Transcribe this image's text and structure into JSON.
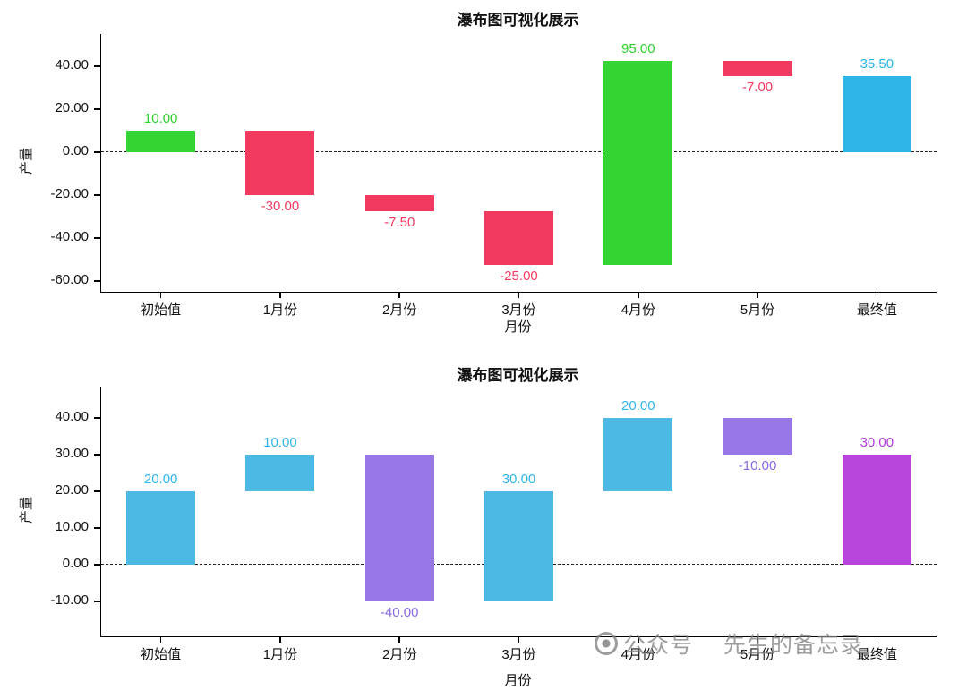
{
  "watermark": {
    "prefix": "公众号",
    "suffix": "先生的备忘录"
  },
  "chart_data": [
    {
      "type": "bar",
      "variant": "waterfall",
      "title": "瀑布图可视化展示",
      "xlabel": "月份",
      "ylabel": "产量",
      "categories": [
        "初始值",
        "1月份",
        "2月份",
        "3月份",
        "4月份",
        "5月份",
        "最终值"
      ],
      "values": [
        10,
        -30,
        -7.5,
        -25,
        95,
        -7,
        35.5
      ],
      "bars": [
        {
          "category": "初始值",
          "start": 0,
          "end": 10,
          "value": 10,
          "label": "10.00",
          "color": "#33d433",
          "label_color": "#2ed12e",
          "label_pos": "above"
        },
        {
          "category": "1月份",
          "start": 10,
          "end": -20,
          "value": -30,
          "label": "-30.00",
          "color": "#f23a60",
          "label_color": "#f23a60",
          "label_pos": "below"
        },
        {
          "category": "2月份",
          "start": -20,
          "end": -27.5,
          "value": -7.5,
          "label": "-7.50",
          "color": "#f23a60",
          "label_color": "#f23a60",
          "label_pos": "below"
        },
        {
          "category": "3月份",
          "start": -27.5,
          "end": -52.5,
          "value": -25,
          "label": "-25.00",
          "color": "#f23a60",
          "label_color": "#f23a60",
          "label_pos": "below"
        },
        {
          "category": "4月份",
          "start": -52.5,
          "end": 42.5,
          "value": 95,
          "label": "95.00",
          "color": "#33d433",
          "label_color": "#2ed12e",
          "label_pos": "above"
        },
        {
          "category": "5月份",
          "start": 42.5,
          "end": 35.5,
          "value": -7,
          "label": "-7.00",
          "color": "#f23a60",
          "label_color": "#f23a60",
          "label_pos": "below"
        },
        {
          "category": "最终值",
          "start": 0,
          "end": 35.5,
          "value": 35.5,
          "label": "35.50",
          "color": "#2fb6e9",
          "label_color": "#27b8ea",
          "label_pos": "above"
        }
      ],
      "yticks": [
        40,
        20,
        0,
        -20,
        -40,
        -60
      ],
      "ytick_labels": [
        "40.00",
        "20.00",
        "0.00",
        "-20.00",
        "-40.00",
        "-60.00"
      ],
      "ylim": [
        -65,
        55
      ],
      "zero_line": true,
      "grid": false,
      "legend": false
    },
    {
      "type": "bar",
      "variant": "waterfall",
      "title": "瀑布图可视化展示",
      "xlabel": "月份",
      "ylabel": "产量",
      "categories": [
        "初始值",
        "1月份",
        "2月份",
        "3月份",
        "4月份",
        "5月份",
        "最终值"
      ],
      "values": [
        20,
        10,
        -40,
        30,
        20,
        -10,
        30
      ],
      "bars": [
        {
          "category": "初始值",
          "start": 0,
          "end": 20,
          "value": 20,
          "label": "20.00",
          "color": "#4cb8e4",
          "label_color": "#2fb6e9",
          "label_pos": "above"
        },
        {
          "category": "1月份",
          "start": 20,
          "end": 30,
          "value": 10,
          "label": "10.00",
          "color": "#4cb8e4",
          "label_color": "#2fb6e9",
          "label_pos": "above"
        },
        {
          "category": "2月份",
          "start": 30,
          "end": -10,
          "value": -40,
          "label": "-40.00",
          "color": "#9878e8",
          "label_color": "#8b68e2",
          "label_pos": "below"
        },
        {
          "category": "3月份",
          "start": -10,
          "end": 20,
          "value": 30,
          "label": "30.00",
          "color": "#4cb8e4",
          "label_color": "#2fb6e9",
          "label_pos": "above"
        },
        {
          "category": "4月份",
          "start": 20,
          "end": 40,
          "value": 20,
          "label": "20.00",
          "color": "#4cb8e4",
          "label_color": "#2fb6e9",
          "label_pos": "above"
        },
        {
          "category": "5月份",
          "start": 40,
          "end": 30,
          "value": -10,
          "label": "-10.00",
          "color": "#9878e8",
          "label_color": "#8b68e2",
          "label_pos": "below"
        },
        {
          "category": "最终值",
          "start": 0,
          "end": 30,
          "value": 30,
          "label": "30.00",
          "color": "#b944dd",
          "label_color": "#b53ad9",
          "label_pos": "above"
        }
      ],
      "yticks": [
        40,
        30,
        20,
        10,
        0,
        -10
      ],
      "ytick_labels": [
        "40.00",
        "30.00",
        "20.00",
        "10.00",
        "0.00",
        "-10.00"
      ],
      "ylim": [
        -19.5,
        48.5
      ],
      "zero_line": true,
      "grid": false,
      "legend": false
    }
  ]
}
